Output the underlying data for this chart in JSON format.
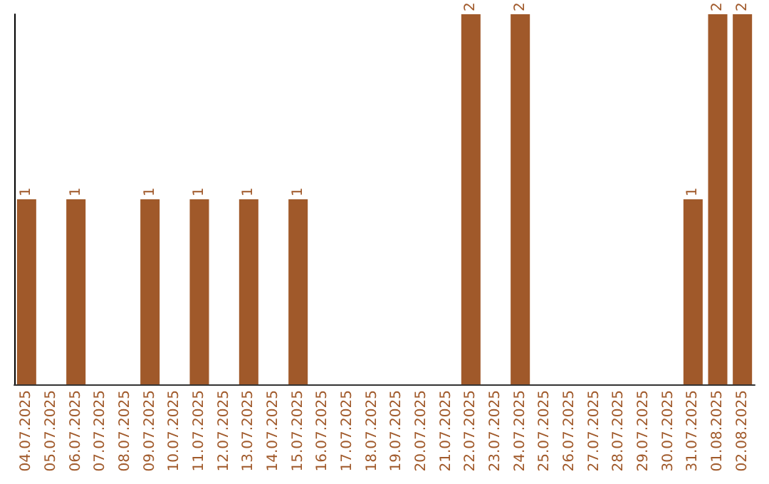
{
  "chart_data": {
    "type": "bar",
    "categories": [
      "04.07.2025",
      "05.07.2025",
      "06.07.2025",
      "07.07.2025",
      "08.07.2025",
      "09.07.2025",
      "10.07.2025",
      "11.07.2025",
      "12.07.2025",
      "13.07.2025",
      "14.07.2025",
      "15.07.2025",
      "16.07.2025",
      "17.07.2025",
      "18.07.2025",
      "19.07.2025",
      "20.07.2025",
      "21.07.2025",
      "22.07.2025",
      "23.07.2025",
      "24.07.2025",
      "25.07.2025",
      "26.07.2025",
      "27.07.2025",
      "28.07.2025",
      "29.07.2025",
      "30.07.2025",
      "31.07.2025",
      "01.08.2025",
      "02.08.2025"
    ],
    "values": [
      1,
      0,
      1,
      0,
      0,
      1,
      0,
      1,
      0,
      1,
      0,
      1,
      0,
      0,
      0,
      0,
      0,
      0,
      2,
      0,
      2,
      0,
      0,
      0,
      0,
      0,
      0,
      1,
      2,
      2
    ],
    "value_labels": [
      "1",
      null,
      "1",
      null,
      null,
      "1",
      null,
      "1",
      null,
      "1",
      null,
      "1",
      null,
      null,
      null,
      null,
      null,
      null,
      "2",
      null,
      "2",
      null,
      null,
      null,
      null,
      null,
      null,
      "1",
      "2",
      "2"
    ],
    "color": "#a0592a",
    "grid": false,
    "tick_labels": "x"
  }
}
